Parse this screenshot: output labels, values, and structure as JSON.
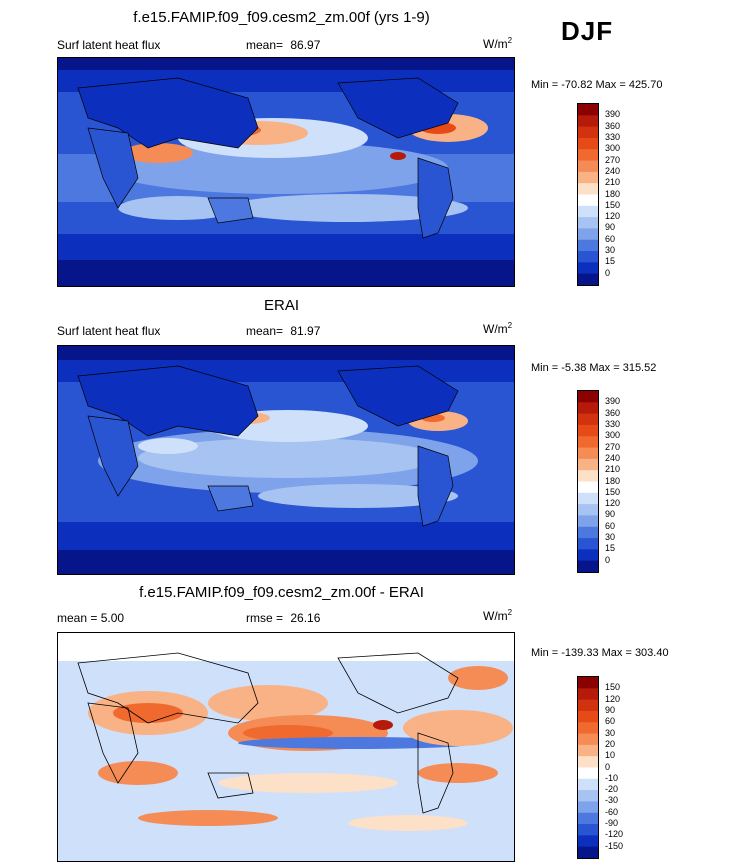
{
  "season": "DJF",
  "panels": [
    {
      "id": "model",
      "title": "f.e15.FAMIP.f09_f09.cesm2_zm.00f (yrs 1-9)",
      "left_label": "Surf latent heat flux",
      "stat_label": "mean=",
      "stat_value": "86.97",
      "unit": "W/m",
      "unit_exp": "2",
      "minmax": "Min = -70.82 Max = 425.70",
      "levels": [
        "390",
        "360",
        "330",
        "300",
        "270",
        "240",
        "210",
        "180",
        "150",
        "120",
        "90",
        "60",
        "30",
        "15",
        "0"
      ],
      "palette": "abs"
    },
    {
      "id": "obs",
      "title": "ERAI",
      "left_label": "Surf latent heat flux",
      "stat_label": "mean=",
      "stat_value": "81.97",
      "unit": "W/m",
      "unit_exp": "2",
      "minmax": "Min =  -5.38 Max = 315.52",
      "levels": [
        "390",
        "360",
        "330",
        "300",
        "270",
        "240",
        "210",
        "180",
        "150",
        "120",
        "90",
        "60",
        "30",
        "15",
        "0"
      ],
      "palette": "abs"
    },
    {
      "id": "diff",
      "title": "f.e15.FAMIP.f09_f09.cesm2_zm.00f - ERAI",
      "left_label": "mean =   5.00",
      "stat_label": "rmse =",
      "stat_value": "26.16",
      "unit": "W/m",
      "unit_exp": "2",
      "minmax": "Min = -139.33 Max = 303.40",
      "levels": [
        "150",
        "120",
        "90",
        "60",
        "30",
        "20",
        "10",
        "0",
        "-10",
        "-20",
        "-30",
        "-60",
        "-90",
        "-120",
        "-150"
      ],
      "palette": "diff"
    }
  ],
  "colors": {
    "abs": [
      "#8b0000",
      "#b51a0a",
      "#d2320f",
      "#e64a16",
      "#f06a30",
      "#f58c55",
      "#f9b285",
      "#fce0c8",
      "#ffffff",
      "#cfe0fa",
      "#a7c3f2",
      "#7ea3ea",
      "#4d78df",
      "#2a55d2",
      "#0c2fbe",
      "#06158a"
    ],
    "diff": [
      "#8b0000",
      "#b51a0a",
      "#d2320f",
      "#e64a16",
      "#f06a30",
      "#f58c55",
      "#f9b285",
      "#fce0c8",
      "#ffffff",
      "#cfe0fa",
      "#a7c3f2",
      "#7ea3ea",
      "#4d78df",
      "#2a55d2",
      "#0c2fbe",
      "#06158a"
    ]
  }
}
